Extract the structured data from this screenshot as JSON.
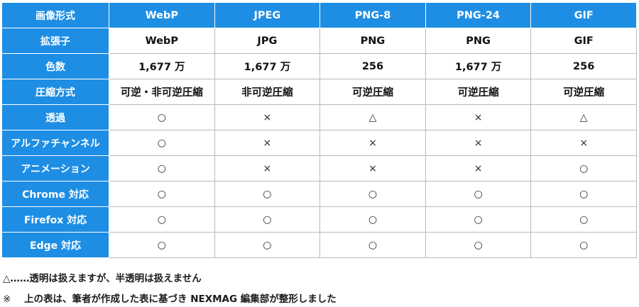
{
  "table": {
    "corner_label": "画像形式",
    "columns": [
      "WebP",
      "JPEG",
      "PNG-8",
      "PNG-24",
      "GIF"
    ],
    "rows": [
      {
        "label": "拡張子",
        "kind": "value",
        "cells": [
          "WebP",
          "JPG",
          "PNG",
          "PNG",
          "GIF"
        ]
      },
      {
        "label": "色数",
        "kind": "value",
        "cells": [
          "1,677 万",
          "1,677 万",
          "256",
          "1,677 万",
          "256"
        ]
      },
      {
        "label": "圧縮方式",
        "kind": "value",
        "cells": [
          "可逆・非可逆圧縮",
          "非可逆圧縮",
          "可逆圧縮",
          "可逆圧縮",
          "可逆圧縮"
        ]
      },
      {
        "label": "透過",
        "kind": "mark",
        "cells": [
          "○",
          "×",
          "△",
          "×",
          "△"
        ]
      },
      {
        "label": "アルファチャンネル",
        "kind": "mark",
        "cells": [
          "○",
          "×",
          "×",
          "×",
          "×"
        ]
      },
      {
        "label": "アニメーション",
        "kind": "mark",
        "cells": [
          "○",
          "×",
          "×",
          "×",
          "○"
        ]
      },
      {
        "label": "Chrome 対応",
        "kind": "mark",
        "cells": [
          "○",
          "○",
          "○",
          "○",
          "○"
        ]
      },
      {
        "label": "Firefox 対応",
        "kind": "mark",
        "cells": [
          "○",
          "○",
          "○",
          "○",
          "○"
        ]
      },
      {
        "label": "Edge 対応",
        "kind": "mark",
        "cells": [
          "○",
          "○",
          "○",
          "○",
          "○"
        ]
      }
    ]
  },
  "notes": {
    "triangle_mark": "△",
    "triangle_text": "……透明は扱えますが、半透明は扱えません",
    "source_mark": "※",
    "source_text": "上の表は、筆者が作成した表に基づき NEXMAG 編集部が整形しました"
  },
  "colors": {
    "header_bg": "#1e8ee4",
    "header_text": "#ffffff",
    "border": "#b9b9b9"
  }
}
